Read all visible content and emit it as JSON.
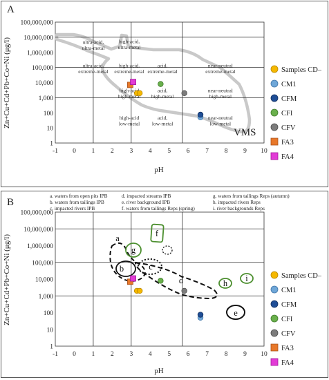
{
  "panels": [
    {
      "letter": "A",
      "ylabel": "Zn+Cu+Cd+Pb+Co+Ni (μg/l)",
      "xlabel": "pH",
      "region_labels": [
        {
          "lines": [
            "ultra-acid,",
            "ultra-metal"
          ],
          "x": 1.0,
          "y": 6.55
        },
        {
          "lines": [
            "high-acid,",
            "ultra-metal"
          ],
          "x": 2.9,
          "y": 6.6
        },
        {
          "lines": [
            "ultra-acid,",
            "extreme-metal"
          ],
          "x": 1.0,
          "y": 5.0
        },
        {
          "lines": [
            "high-acid,",
            "extreme-metal"
          ],
          "x": 2.9,
          "y": 5.0
        },
        {
          "lines": [
            "acid,",
            "extreme-metal"
          ],
          "x": 4.65,
          "y": 5.0
        },
        {
          "lines": [
            "near-neutral",
            "extreme-metal"
          ],
          "x": 7.7,
          "y": 5.0
        },
        {
          "lines": [
            "high-acid",
            "high-metal"
          ],
          "x": 2.9,
          "y": 3.35
        },
        {
          "lines": [
            "acid,",
            "high-metal"
          ],
          "x": 4.65,
          "y": 3.35
        },
        {
          "lines": [
            "near-neutral",
            "high-metal"
          ],
          "x": 7.7,
          "y": 3.35
        },
        {
          "lines": [
            "high-acid",
            "low-metal"
          ],
          "x": 2.9,
          "y": 1.55
        },
        {
          "lines": [
            "acid,",
            "low-metal"
          ],
          "x": 4.65,
          "y": 1.55
        },
        {
          "lines": [
            "near-neutral",
            "low-metal"
          ],
          "x": 7.7,
          "y": 1.55
        }
      ],
      "field_label": "VMS"
    },
    {
      "letter": "B",
      "ylabel": "Zn+Cu+Cd+Pb+Co+Ni (μg/l)",
      "xlabel": "pH",
      "notes_col1": [
        "a. waters from open pits IPB",
        "b. waters from tailings IPB",
        "c. impacted rivers IPB"
      ],
      "notes_col2": [
        "d. impacted streams IPB",
        "e. river background IPB",
        "f. waters from tailings Reps (spring)"
      ],
      "notes_col3": [
        "g. waters from tailings Reps (autumn)",
        "h. impacted rivers Reps",
        "i. river backgrounds Reps"
      ],
      "envelope_labels": [
        "a",
        "b",
        "c",
        "d",
        "e",
        "f",
        "g",
        "h",
        "i"
      ]
    }
  ],
  "legend": [
    {
      "key": "samples",
      "label": "Samples CD–",
      "color": "#f5b800",
      "stroke": "#b58500",
      "shape": "circle"
    },
    {
      "key": "cm1",
      "label": "CM1",
      "color": "#6fa7d8",
      "stroke": "#3e73a6",
      "shape": "circle"
    },
    {
      "key": "cfm",
      "label": "CFM",
      "color": "#1f4e96",
      "stroke": "#122f5d",
      "shape": "circle"
    },
    {
      "key": "cfi",
      "label": "CFI",
      "color": "#6ab04c",
      "stroke": "#3e7a2a",
      "shape": "circle"
    },
    {
      "key": "cfv",
      "label": "CFV",
      "color": "#7c7c7c",
      "stroke": "#4a4a4a",
      "shape": "circle"
    },
    {
      "key": "fa3",
      "label": "FA3",
      "color": "#e8782a",
      "stroke": "#a8501a",
      "shape": "square"
    },
    {
      "key": "fa4",
      "label": "FA4",
      "color": "#e23bd6",
      "stroke": "#a01899",
      "shape": "square"
    }
  ],
  "chart_data": [
    {
      "type": "scatter",
      "title": "A",
      "xlabel": "pH",
      "ylabel": "Zn+Cu+Cd+Pb+Co+Ni (μg/l)",
      "xlim": [
        -1,
        10
      ],
      "ylim_log10": [
        0,
        8
      ],
      "x_ticks": [
        "-1",
        "0",
        "1",
        "2",
        "3",
        "4",
        "5",
        "6",
        "7",
        "8",
        "9",
        "10"
      ],
      "y_ticks": [
        "1",
        "10",
        "100",
        "1,000",
        "10,000",
        "100,000",
        "1,000,000",
        "10,000,000",
        "100,000,000"
      ],
      "grid_vertical_pH": [
        1,
        3,
        5.7
      ],
      "grid_horizontal_ugl": [
        1000,
        100000,
        10000000
      ],
      "series": [
        {
          "name": "Samples CD–",
          "key": "samples",
          "points": [
            [
              3.3,
              2000
            ],
            [
              3.45,
              2000
            ]
          ]
        },
        {
          "name": "CM1",
          "key": "cm1",
          "points": [
            [
              6.65,
              50
            ]
          ]
        },
        {
          "name": "CFM",
          "key": "cfm",
          "points": [
            [
              6.65,
              75
            ]
          ]
        },
        {
          "name": "CFI",
          "key": "cfi",
          "points": [
            [
              4.55,
              8000
            ]
          ]
        },
        {
          "name": "CFV",
          "key": "cfv",
          "points": [
            [
              5.8,
              2000
            ]
          ]
        },
        {
          "name": "FA3",
          "key": "fa3",
          "points": [
            [
              2.95,
              7000
            ]
          ]
        },
        {
          "name": "FA4",
          "key": "fa4",
          "points": [
            [
              3.1,
              11000
            ]
          ]
        }
      ]
    },
    {
      "type": "scatter",
      "title": "B",
      "xlabel": "pH",
      "ylabel": "Zn+Cu+Cd+Pb+Co+Ni (μg/l)",
      "xlim": [
        -1,
        10
      ],
      "ylim_log10": [
        0,
        8
      ],
      "x_ticks": [
        "-1",
        "0",
        "1",
        "2",
        "3",
        "4",
        "5",
        "6",
        "7",
        "8",
        "9",
        "10"
      ],
      "y_ticks": [
        "1",
        "10",
        "100",
        "1,000",
        "10,000",
        "100,000",
        "1,000,000",
        "10,000,000",
        "100,000,000"
      ],
      "grid_vertical_pH": [
        1,
        3,
        5.7
      ],
      "grid_horizontal_ugl": [
        1000,
        100000,
        10000000
      ],
      "series": [
        {
          "name": "Samples CD–",
          "key": "samples",
          "points": [
            [
              3.3,
              2000
            ],
            [
              3.45,
              2000
            ]
          ]
        },
        {
          "name": "CM1",
          "key": "cm1",
          "points": [
            [
              6.65,
              50
            ]
          ]
        },
        {
          "name": "CFM",
          "key": "cfm",
          "points": [
            [
              6.65,
              75
            ]
          ]
        },
        {
          "name": "CFI",
          "key": "cfi",
          "points": [
            [
              4.55,
              8000
            ]
          ]
        },
        {
          "name": "CFV",
          "key": "cfv",
          "points": [
            [
              5.8,
              2000
            ]
          ]
        },
        {
          "name": "FA3",
          "key": "fa3",
          "points": [
            [
              2.95,
              7000
            ]
          ]
        },
        {
          "name": "FA4",
          "key": "fa4",
          "points": [
            [
              3.1,
              11000
            ]
          ]
        }
      ]
    }
  ]
}
